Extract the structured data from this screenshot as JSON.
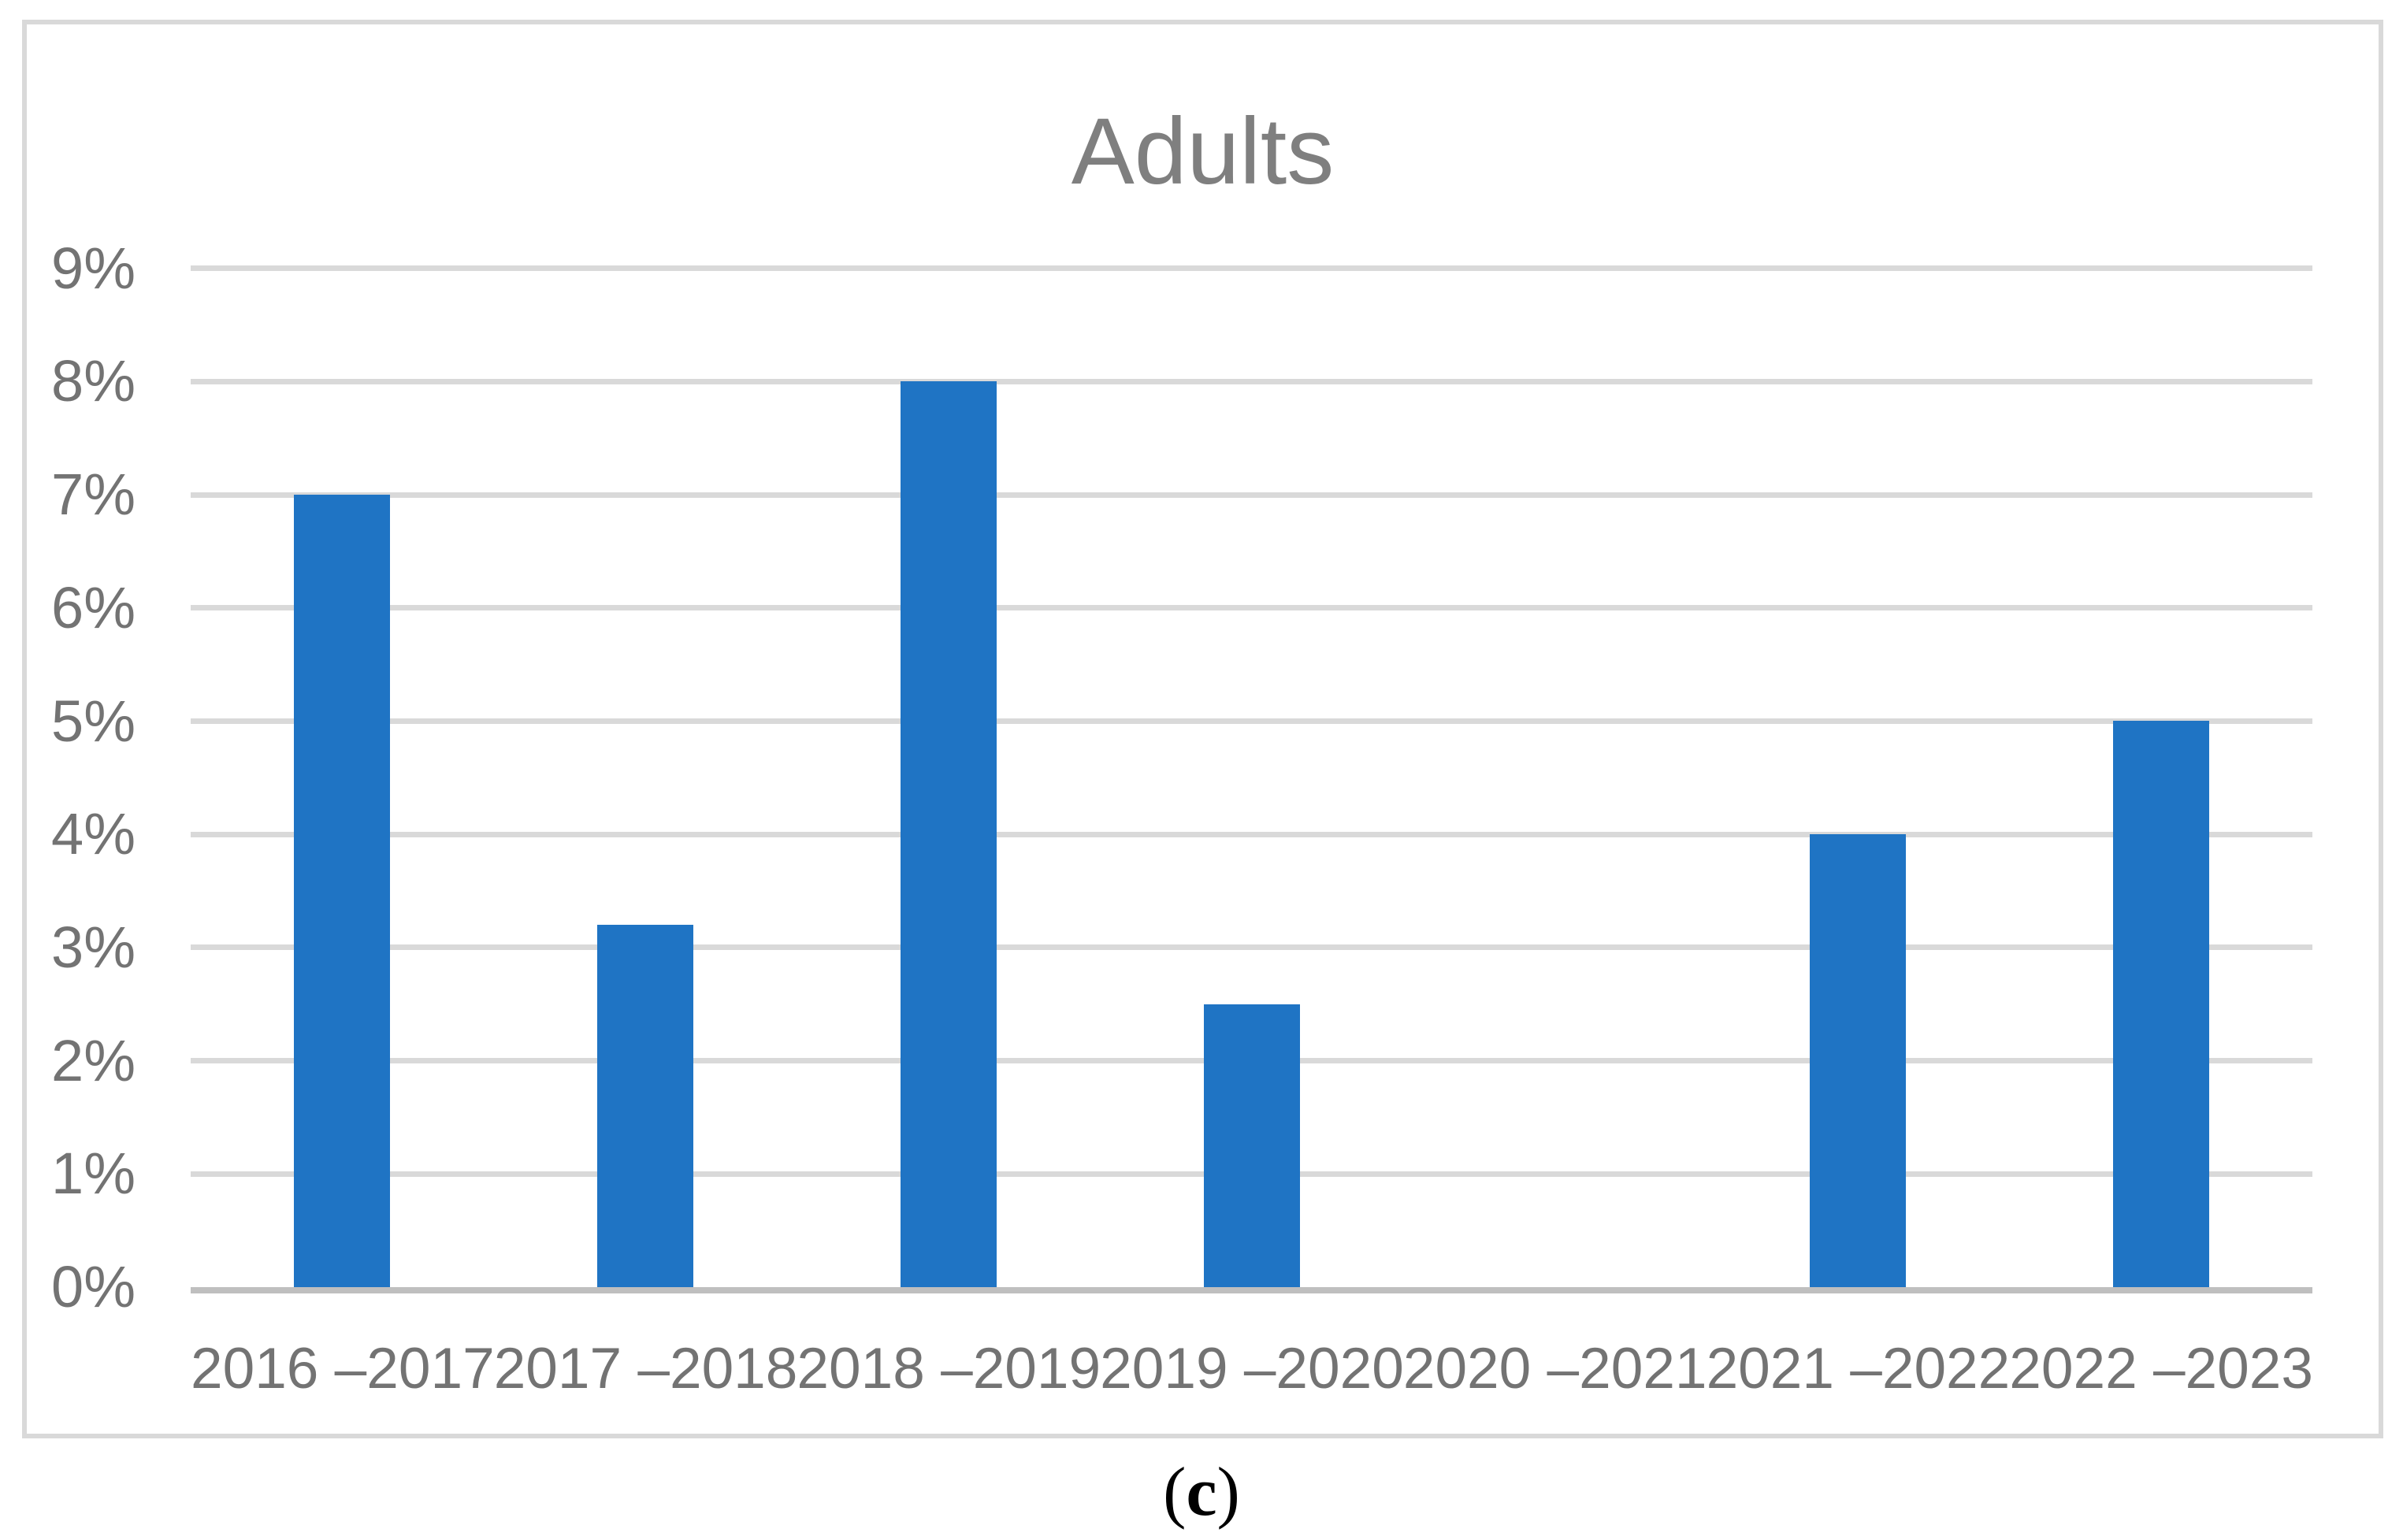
{
  "chart_data": {
    "type": "bar",
    "title": "Adults",
    "categories": [
      "2016 –2017",
      "2017 –2018",
      "2018 –2019",
      "2019 –2020",
      "2020 –2021",
      "2021 –2022",
      "2022 –2023"
    ],
    "values": [
      7,
      3.2,
      8,
      2.5,
      0,
      4,
      5
    ],
    "unit": "%",
    "y_ticks": [
      "0%",
      "1%",
      "2%",
      "3%",
      "4%",
      "5%",
      "6%",
      "7%",
      "8%",
      "9%"
    ],
    "ylim": [
      0,
      9
    ],
    "grid": true,
    "legend": "none",
    "bar_color": "#1F74C4",
    "gridline_color": "#D9D9D9",
    "axis_line_color": "#BFBFBF",
    "title_color": "#7F7F7F",
    "axis_label_color": "#737373",
    "frame_border_color": "#D9D9D9"
  },
  "caption": {
    "open": "(",
    "letter": "c",
    "close": ")"
  }
}
